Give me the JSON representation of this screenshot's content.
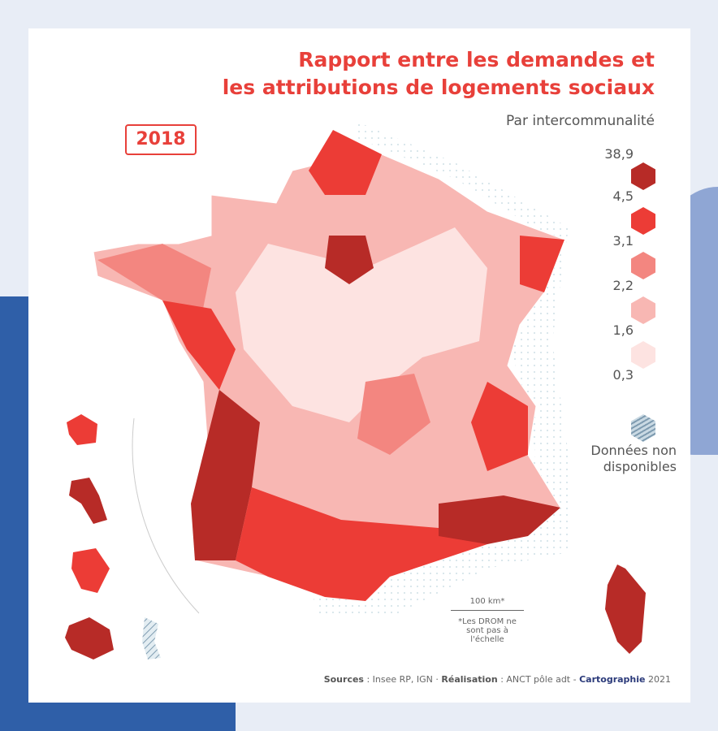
{
  "title_line1": "Rapport entre les demandes et",
  "title_line2": "les attributions de logements sociaux",
  "subtitle": "Par intercommunalité",
  "year": "2018",
  "legend": {
    "breaks": [
      "38,9",
      "4,5",
      "3,1",
      "2,2",
      "1,6",
      "0,3"
    ],
    "colors": [
      "#b72b27",
      "#ec3c36",
      "#f38680",
      "#f8b7b3",
      "#fde3e1"
    ],
    "na_label_1": "Données non",
    "na_label_2": "disponibles",
    "na_color": "#c9d9e3"
  },
  "scale": {
    "label": "100 km*",
    "note_1": "*Les DROM ne",
    "note_2": "sont pas à l'échelle"
  },
  "footer": {
    "sources_label": "Sources",
    "sources": " : Insee RP, IGN · ",
    "realisation_label": "Réalisation",
    "realisation": " : ANCT pôle adt - ",
    "carto": "Cartographie",
    "year": " 2021"
  }
}
